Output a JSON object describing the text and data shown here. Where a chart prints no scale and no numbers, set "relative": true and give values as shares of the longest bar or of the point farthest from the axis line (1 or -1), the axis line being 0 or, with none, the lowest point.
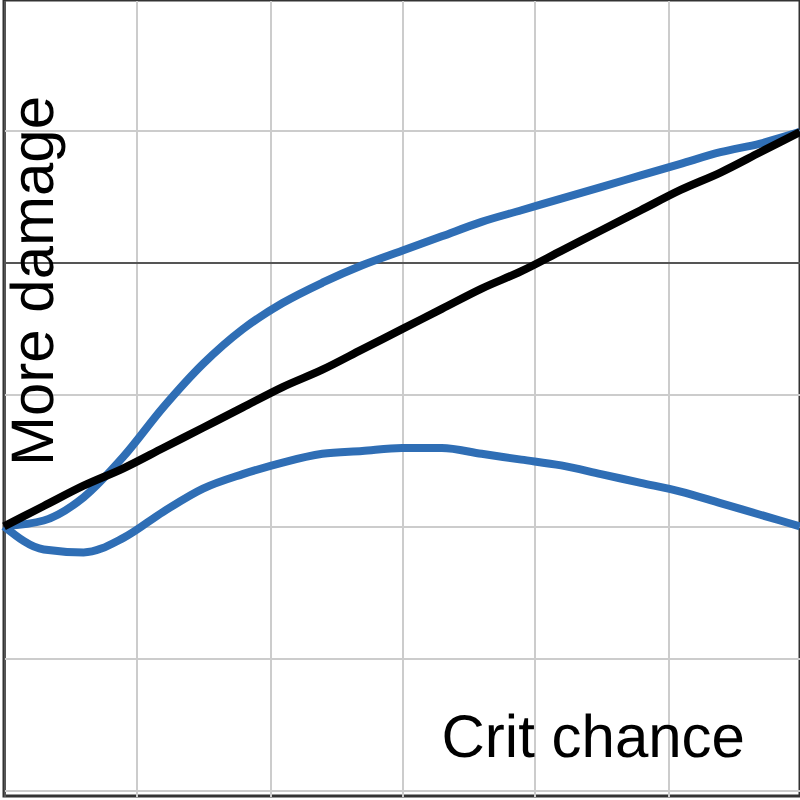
{
  "chart_data": {
    "type": "line",
    "relative": true,
    "xlabel": "Crit chance",
    "ylabel": "More damage",
    "grid": true,
    "marker": "none",
    "line_style": "solid",
    "categories": [
      null,
      null,
      null,
      null,
      null,
      null,
      null,
      null,
      null,
      null,
      null,
      null,
      null,
      null,
      null,
      null,
      null,
      null,
      null,
      null,
      null
    ],
    "series": [
      {
        "color": "#2f6eb5",
        "values": [
          -0.91,
          -0.89,
          -0.81,
          -0.67,
          -0.5,
          -0.35,
          -0.23,
          -0.14,
          -0.07,
          -0.01,
          0.04,
          0.09,
          0.14,
          0.18,
          0.22,
          0.26,
          0.3,
          0.34,
          0.38,
          0.41,
          0.45
        ]
      },
      {
        "color": "#2f6eb5",
        "values": [
          -0.91,
          -0.99,
          -1,
          -0.95,
          -0.86,
          -0.78,
          -0.73,
          -0.69,
          -0.66,
          -0.65,
          -0.64,
          -0.64,
          -0.66,
          -0.68,
          -0.7,
          -0.73,
          -0.76,
          -0.79,
          -0.83,
          -0.87,
          -0.91
        ]
      },
      {
        "color": "#000000",
        "values": [
          -0.91,
          -0.84,
          -0.77,
          -0.71,
          -0.64,
          -0.57,
          -0.5,
          -0.43,
          -0.37,
          -0.3,
          -0.23,
          -0.16,
          -0.09,
          -0.03,
          0.04,
          0.11,
          0.18,
          0.25,
          0.31,
          0.38,
          0.45
        ]
      }
    ]
  }
}
